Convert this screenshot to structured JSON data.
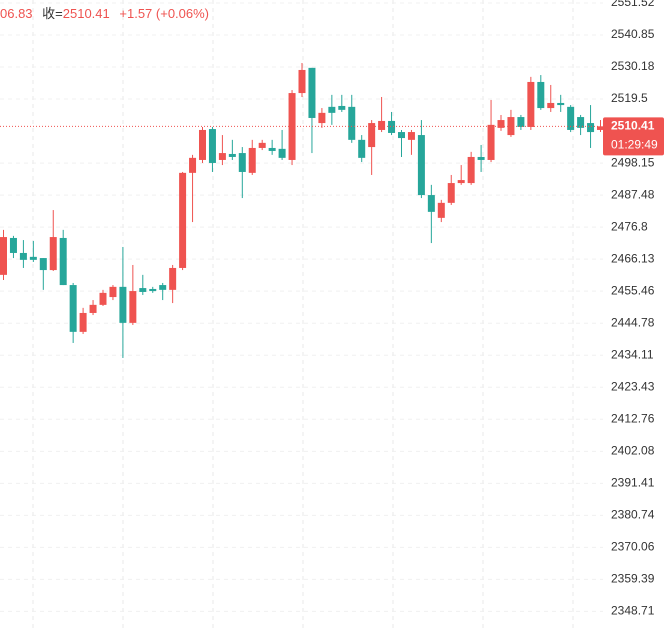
{
  "chart_data": {
    "type": "candlestick",
    "header": {
      "open_fragment": "06.83",
      "close_label": "收=",
      "change": "+1.57 (+0.06%)"
    },
    "countdown": "01:29:49",
    "up_color": "#ef5350",
    "down_color": "#26a69a",
    "ylim": [
      2342.52,
      2552.52
    ],
    "yticks": [
      2551.52,
      2540.85,
      2530.18,
      2519.5,
      2498.15,
      2487.48,
      2476.8,
      2466.13,
      2455.46,
      2444.78,
      2434.11,
      2423.43,
      2412.76,
      2402.08,
      2391.41,
      2380.74,
      2370.06,
      2359.39,
      2348.71
    ],
    "grid": true,
    "open": [
      2460.9,
      2473.2,
      2468.2,
      2466.9,
      2466.5,
      2462.5,
      2473.2,
      2457.5,
      2441.9,
      2448.2,
      2450.9,
      2453.5,
      2456.9,
      2444.9,
      2456.5,
      2456.2,
      2457.5,
      2455.9,
      2463.2,
      2494.9,
      2499.2,
      2509.5,
      2499.2,
      2501.2,
      2501.5,
      2494.9,
      2503.2,
      2503.2,
      2502.9,
      2499.2,
      2521.5,
      2529.9,
      2511.5,
      2516.9,
      2517.2,
      2516.9,
      2505.9,
      2503.5,
      2509.2,
      2512.2,
      2508.5,
      2505.9,
      2507.5,
      2487.5,
      2479.9,
      2484.9,
      2491.5,
      2491.5,
      2500.2,
      2499.2,
      2509.9,
      2507.5,
      2513.5,
      2510.2,
      2525.2,
      2516.5,
      2518.2,
      2516.9,
      2513.5,
      2511.5,
      2509.2
    ],
    "high": [
      2475.9,
      2473.9,
      2472.5,
      2472.2,
      2466.5,
      2482.5,
      2475.9,
      2458.2,
      2449.9,
      2452.5,
      2455.9,
      2457.5,
      2470.2,
      2464.2,
      2460.9,
      2456.9,
      2458.2,
      2464.2,
      2495.2,
      2500.9,
      2510.2,
      2510.2,
      2507.5,
      2505.9,
      2503.5,
      2505.9,
      2505.9,
      2505.9,
      2509.2,
      2522.5,
      2531.5,
      2529.9,
      2516.5,
      2520.9,
      2520.9,
      2520.9,
      2507.5,
      2512.5,
      2520.2,
      2515.2,
      2509.2,
      2509.2,
      2512.5,
      2490.9,
      2485.9,
      2494.2,
      2497.5,
      2501.9,
      2504.2,
      2519.2,
      2514.2,
      2515.9,
      2514.2,
      2526.9,
      2527.5,
      2524.2,
      2520.9,
      2517.5,
      2514.2,
      2517.5,
      2512.5
    ],
    "low": [
      2459.2,
      2466.5,
      2463.2,
      2465.2,
      2455.9,
      2462.2,
      2457.5,
      2438.2,
      2441.2,
      2447.5,
      2450.5,
      2452.5,
      2433.2,
      2444.2,
      2454.2,
      2454.9,
      2452.5,
      2451.5,
      2462.5,
      2478.5,
      2498.2,
      2495.2,
      2497.5,
      2499.2,
      2486.5,
      2494.2,
      2502.5,
      2500.9,
      2499.2,
      2497.5,
      2520.2,
      2501.5,
      2509.9,
      2510.9,
      2515.2,
      2504.9,
      2498.5,
      2494.2,
      2508.5,
      2507.5,
      2500.2,
      2500.9,
      2486.5,
      2471.5,
      2478.5,
      2484.2,
      2490.9,
      2490.9,
      2495.2,
      2498.5,
      2508.9,
      2506.9,
      2509.2,
      2509.2,
      2515.9,
      2515.2,
      2515.2,
      2508.5,
      2507.5,
      2503.2,
      2508.5
    ],
    "close": [
      2473.5,
      2468.2,
      2465.9,
      2465.9,
      2462.5,
      2473.5,
      2457.5,
      2441.9,
      2448.2,
      2450.9,
      2454.9,
      2456.9,
      2444.9,
      2455.5,
      2455.2,
      2455.5,
      2455.9,
      2463.2,
      2494.9,
      2499.9,
      2509.2,
      2498.2,
      2501.5,
      2500.2,
      2495.2,
      2503.2,
      2504.9,
      2502.2,
      2499.9,
      2521.5,
      2529.2,
      2513.2,
      2514.9,
      2514.9,
      2515.9,
      2505.9,
      2499.9,
      2511.5,
      2512.2,
      2508.2,
      2506.5,
      2508.5,
      2487.5,
      2481.9,
      2484.9,
      2491.5,
      2492.5,
      2500.2,
      2499.2,
      2510.9,
      2512.5,
      2513.5,
      2510.2,
      2525.2,
      2516.5,
      2518.2,
      2517.5,
      2509.2,
      2509.9,
      2508.5,
      2510.41
    ]
  }
}
